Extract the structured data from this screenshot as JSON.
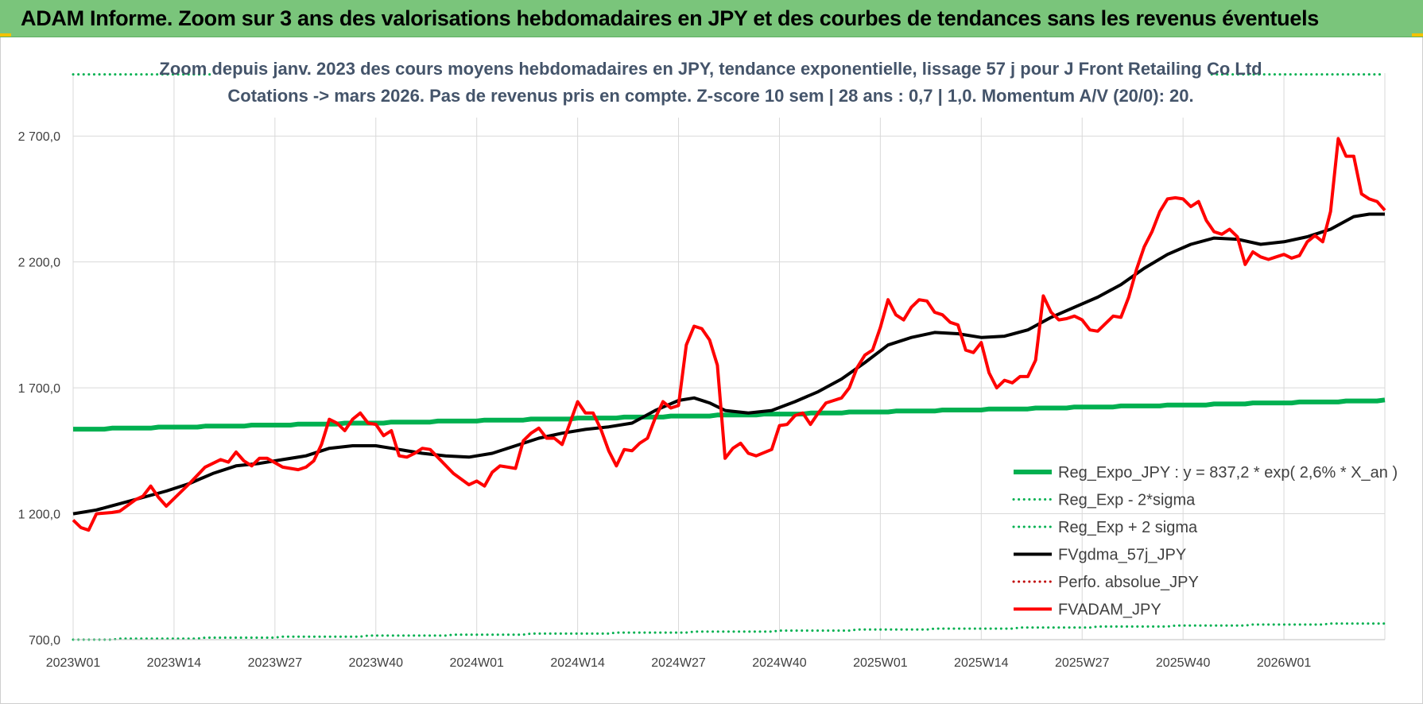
{
  "header": {
    "title": "ADAM Informe. Zoom sur 3 ans des valorisations hebdomadaires en JPY et des courbes de tendances sans les revenus éventuels"
  },
  "colors": {
    "banner": "#7ac57b",
    "green": "#00b050",
    "black": "#000000",
    "red": "#ff0000",
    "dotted_red": "#c00000"
  },
  "chart_data": {
    "type": "line",
    "title_lines": [
      "Zoom depuis janv. 2023 des cours moyens hebdomadaires en JPY, tendance exponentielle, lissage 57 j pour J Front Retailing Co Ltd",
      "Cotations -> mars 2026. Pas de revenus pris en compte. Z-score 10 sem | 28 ans : 0,7 | 1,0. Momentum A/V (20/0): 20."
    ],
    "ylim": [
      700,
      2950
    ],
    "y_ticks": [
      700,
      1200,
      1700,
      2200,
      2700
    ],
    "y_tick_labels": [
      "700,0",
      "1 200,0",
      "1 700,0",
      "2 200,0",
      "2 700,0"
    ],
    "x_count": 170,
    "x_ticks": [
      {
        "index": 0,
        "label": "2023W01"
      },
      {
        "index": 13,
        "label": "2023W14"
      },
      {
        "index": 26,
        "label": "2023W27"
      },
      {
        "index": 39,
        "label": "2023W40"
      },
      {
        "index": 52,
        "label": "2024W01"
      },
      {
        "index": 65,
        "label": "2024W14"
      },
      {
        "index": 78,
        "label": "2024W27"
      },
      {
        "index": 91,
        "label": "2024W40"
      },
      {
        "index": 104,
        "label": "2025W01"
      },
      {
        "index": 117,
        "label": "2025W14"
      },
      {
        "index": 130,
        "label": "2025W27"
      },
      {
        "index": 143,
        "label": "2025W40"
      },
      {
        "index": 156,
        "label": "2026W01"
      }
    ],
    "series": [
      {
        "name": "Reg_Expo_JPY : y = 837,2 * exp( 2,6% *  X_an )",
        "color": "#00b050",
        "style": "solid",
        "width": 6,
        "type": "exp",
        "start": 1535,
        "end": 1650
      },
      {
        "name": "Reg_Exp - 2*sigma",
        "color": "#00b050",
        "style": "dotted",
        "width": 3,
        "type": "exp",
        "start": 700,
        "end": 765
      },
      {
        "name": "Reg_Exp + 2 sigma",
        "color": "#00b050",
        "style": "dotted",
        "width": 3,
        "type": "constant",
        "value": 2945
      },
      {
        "name": "FVgdma_57j_JPY",
        "color": "#000000",
        "style": "solid",
        "width": 4,
        "type": "points",
        "points": [
          [
            0,
            1200
          ],
          [
            3,
            1215
          ],
          [
            6,
            1240
          ],
          [
            9,
            1265
          ],
          [
            12,
            1290
          ],
          [
            15,
            1320
          ],
          [
            18,
            1360
          ],
          [
            21,
            1390
          ],
          [
            24,
            1400
          ],
          [
            27,
            1415
          ],
          [
            30,
            1430
          ],
          [
            33,
            1460
          ],
          [
            36,
            1470
          ],
          [
            39,
            1470
          ],
          [
            42,
            1455
          ],
          [
            45,
            1440
          ],
          [
            48,
            1430
          ],
          [
            51,
            1425
          ],
          [
            54,
            1440
          ],
          [
            57,
            1470
          ],
          [
            60,
            1500
          ],
          [
            63,
            1520
          ],
          [
            66,
            1535
          ],
          [
            69,
            1545
          ],
          [
            72,
            1560
          ],
          [
            75,
            1610
          ],
          [
            78,
            1650
          ],
          [
            80,
            1660
          ],
          [
            82,
            1640
          ],
          [
            84,
            1610
          ],
          [
            87,
            1600
          ],
          [
            90,
            1610
          ],
          [
            93,
            1645
          ],
          [
            96,
            1685
          ],
          [
            99,
            1735
          ],
          [
            102,
            1800
          ],
          [
            105,
            1870
          ],
          [
            108,
            1900
          ],
          [
            111,
            1920
          ],
          [
            114,
            1915
          ],
          [
            117,
            1900
          ],
          [
            120,
            1905
          ],
          [
            123,
            1930
          ],
          [
            126,
            1980
          ],
          [
            129,
            2020
          ],
          [
            132,
            2060
          ],
          [
            135,
            2110
          ],
          [
            138,
            2175
          ],
          [
            141,
            2230
          ],
          [
            144,
            2270
          ],
          [
            147,
            2295
          ],
          [
            150,
            2290
          ],
          [
            153,
            2270
          ],
          [
            156,
            2280
          ],
          [
            159,
            2300
          ],
          [
            162,
            2330
          ],
          [
            165,
            2380
          ],
          [
            167,
            2390
          ],
          [
            169,
            2390
          ]
        ]
      },
      {
        "name": "Perfo. absolue_JPY",
        "color": "#c00000",
        "style": "dotted",
        "width": 3,
        "type": "none"
      },
      {
        "name": "FVADAM_JPY",
        "color": "#ff0000",
        "style": "solid",
        "width": 4,
        "type": "points",
        "points": [
          [
            0,
            1175
          ],
          [
            1,
            1145
          ],
          [
            2,
            1135
          ],
          [
            3,
            1200
          ],
          [
            5,
            1205
          ],
          [
            6,
            1210
          ],
          [
            8,
            1255
          ],
          [
            9,
            1270
          ],
          [
            10,
            1310
          ],
          [
            11,
            1265
          ],
          [
            12,
            1230
          ],
          [
            13,
            1260
          ],
          [
            15,
            1320
          ],
          [
            17,
            1385
          ],
          [
            19,
            1415
          ],
          [
            20,
            1405
          ],
          [
            21,
            1445
          ],
          [
            22,
            1410
          ],
          [
            23,
            1390
          ],
          [
            24,
            1420
          ],
          [
            25,
            1420
          ],
          [
            27,
            1385
          ],
          [
            29,
            1375
          ],
          [
            30,
            1385
          ],
          [
            31,
            1410
          ],
          [
            32,
            1475
          ],
          [
            33,
            1575
          ],
          [
            34,
            1560
          ],
          [
            35,
            1530
          ],
          [
            36,
            1575
          ],
          [
            37,
            1600
          ],
          [
            38,
            1560
          ],
          [
            39,
            1555
          ],
          [
            40,
            1510
          ],
          [
            41,
            1530
          ],
          [
            42,
            1430
          ],
          [
            43,
            1425
          ],
          [
            44,
            1440
          ],
          [
            45,
            1460
          ],
          [
            46,
            1455
          ],
          [
            49,
            1360
          ],
          [
            51,
            1315
          ],
          [
            52,
            1330
          ],
          [
            53,
            1310
          ],
          [
            54,
            1365
          ],
          [
            55,
            1390
          ],
          [
            57,
            1380
          ],
          [
            58,
            1490
          ],
          [
            59,
            1520
          ],
          [
            60,
            1540
          ],
          [
            61,
            1500
          ],
          [
            62,
            1500
          ],
          [
            63,
            1475
          ],
          [
            64,
            1560
          ],
          [
            65,
            1645
          ],
          [
            66,
            1600
          ],
          [
            67,
            1600
          ],
          [
            68,
            1535
          ],
          [
            69,
            1450
          ],
          [
            70,
            1390
          ],
          [
            71,
            1455
          ],
          [
            72,
            1450
          ],
          [
            73,
            1480
          ],
          [
            74,
            1500
          ],
          [
            75,
            1580
          ],
          [
            76,
            1645
          ],
          [
            77,
            1620
          ],
          [
            78,
            1630
          ],
          [
            79,
            1870
          ],
          [
            80,
            1945
          ],
          [
            81,
            1935
          ],
          [
            82,
            1890
          ],
          [
            83,
            1790
          ],
          [
            84,
            1420
          ],
          [
            85,
            1460
          ],
          [
            86,
            1480
          ],
          [
            87,
            1440
          ],
          [
            88,
            1430
          ],
          [
            90,
            1455
          ],
          [
            91,
            1550
          ],
          [
            92,
            1555
          ],
          [
            93,
            1590
          ],
          [
            94,
            1600
          ],
          [
            95,
            1555
          ],
          [
            96,
            1600
          ],
          [
            97,
            1640
          ],
          [
            98,
            1650
          ],
          [
            99,
            1660
          ],
          [
            100,
            1700
          ],
          [
            101,
            1780
          ],
          [
            102,
            1830
          ],
          [
            103,
            1850
          ],
          [
            104,
            1940
          ],
          [
            105,
            2050
          ],
          [
            106,
            1990
          ],
          [
            107,
            1970
          ],
          [
            108,
            2020
          ],
          [
            109,
            2050
          ],
          [
            110,
            2045
          ],
          [
            111,
            2000
          ],
          [
            112,
            1990
          ],
          [
            113,
            1960
          ],
          [
            114,
            1950
          ],
          [
            115,
            1850
          ],
          [
            116,
            1840
          ],
          [
            117,
            1880
          ],
          [
            118,
            1760
          ],
          [
            119,
            1700
          ],
          [
            120,
            1730
          ],
          [
            121,
            1720
          ],
          [
            122,
            1745
          ],
          [
            123,
            1745
          ],
          [
            124,
            1810
          ],
          [
            125,
            2065
          ],
          [
            126,
            2000
          ],
          [
            127,
            1970
          ],
          [
            128,
            1975
          ],
          [
            129,
            1985
          ],
          [
            130,
            1970
          ],
          [
            131,
            1930
          ],
          [
            132,
            1925
          ],
          [
            133,
            1955
          ],
          [
            134,
            1985
          ],
          [
            135,
            1980
          ],
          [
            136,
            2060
          ],
          [
            137,
            2170
          ],
          [
            138,
            2260
          ],
          [
            139,
            2320
          ],
          [
            140,
            2400
          ],
          [
            141,
            2450
          ],
          [
            142,
            2455
          ],
          [
            143,
            2450
          ],
          [
            144,
            2420
          ],
          [
            145,
            2440
          ],
          [
            146,
            2365
          ],
          [
            147,
            2320
          ],
          [
            148,
            2310
          ],
          [
            149,
            2330
          ],
          [
            150,
            2300
          ],
          [
            151,
            2190
          ],
          [
            152,
            2240
          ],
          [
            153,
            2220
          ],
          [
            154,
            2210
          ],
          [
            155,
            2220
          ],
          [
            156,
            2230
          ],
          [
            157,
            2215
          ],
          [
            158,
            2225
          ],
          [
            159,
            2280
          ],
          [
            160,
            2305
          ],
          [
            161,
            2280
          ],
          [
            162,
            2400
          ],
          [
            163,
            2690
          ],
          [
            164,
            2620
          ],
          [
            165,
            2620
          ],
          [
            166,
            2470
          ],
          [
            167,
            2450
          ],
          [
            168,
            2440
          ],
          [
            169,
            2405
          ]
        ]
      }
    ],
    "legend_position": "bottom-right"
  }
}
